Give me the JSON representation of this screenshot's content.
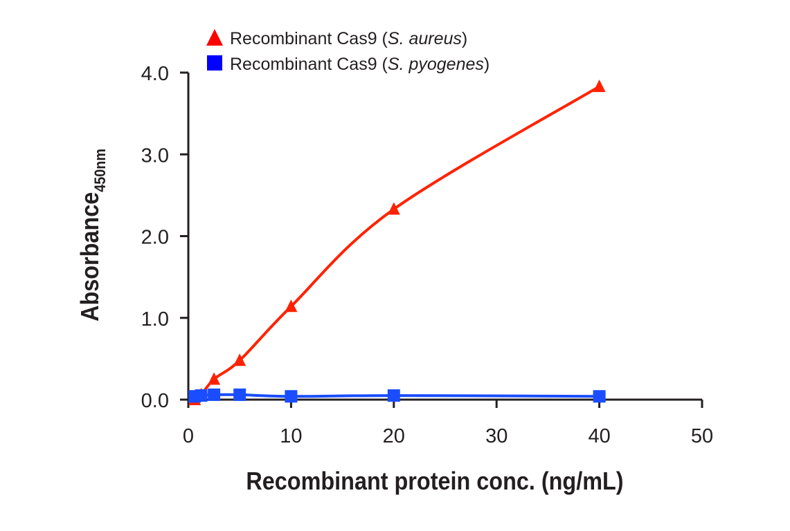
{
  "chart_data": {
    "type": "line",
    "xlabel": "Recombinant protein conc. (ng/mL)",
    "ylabel": {
      "main": "Absorbance",
      "subscript": "450nm"
    },
    "xlim": [
      0,
      50
    ],
    "ylim": [
      0,
      4
    ],
    "xticks": [
      "0",
      "10",
      "20",
      "30",
      "40",
      "50"
    ],
    "yticks": [
      "0.0",
      "1.0",
      "2.0",
      "3.0",
      "4.0"
    ],
    "grid": false,
    "legend_position": "top-left",
    "series": [
      {
        "name_parts": [
          "Recombinant Cas9 (",
          "S. aureus",
          ")"
        ],
        "marker": "triangle",
        "color": "#ff2200",
        "legend_color": "#ff0000",
        "x": [
          0.625,
          1.25,
          2.5,
          5,
          10,
          20,
          40
        ],
        "y": [
          0.0,
          0.06,
          0.25,
          0.48,
          1.14,
          2.33,
          3.83
        ]
      },
      {
        "name_parts": [
          "Recombinant Cas9 (",
          "S. pyogenes",
          ")"
        ],
        "marker": "square",
        "color": "#1a4dff",
        "legend_color": "#0000ff",
        "x": [
          0.625,
          1.25,
          2.5,
          5,
          10,
          20,
          40
        ],
        "y": [
          0.04,
          0.05,
          0.06,
          0.06,
          0.04,
          0.05,
          0.04
        ]
      }
    ]
  }
}
